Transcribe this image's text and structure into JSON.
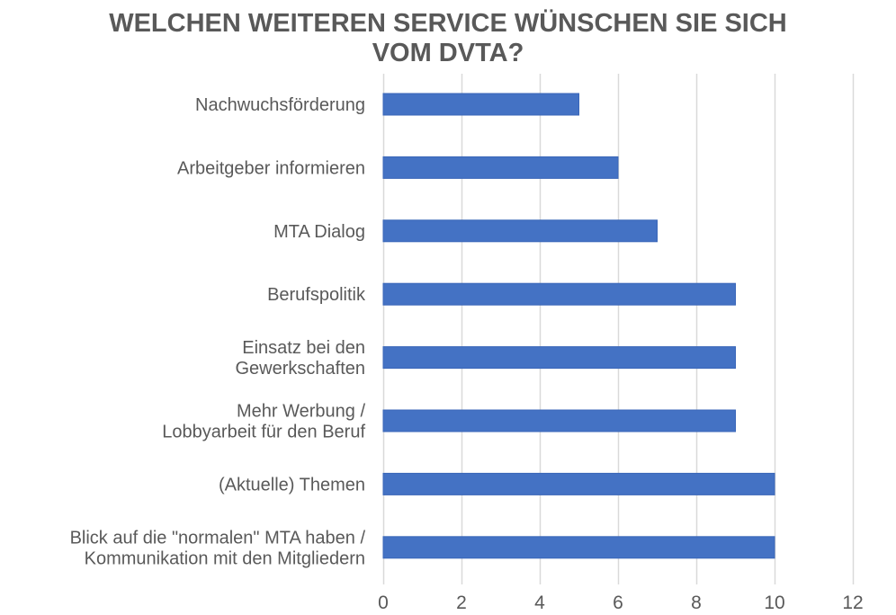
{
  "chart_data": {
    "type": "bar",
    "orientation": "horizontal",
    "title": "WELCHEN WEITEREN SERVICE WÜNSCHEN SIE SICH VOM DVTA?",
    "title_lines": [
      "WELCHEN WEITEREN SERVICE WÜNSCHEN SIE SICH",
      "VOM DVTA?"
    ],
    "categories": [
      [
        "Nachwuchsförderung"
      ],
      [
        "Arbeitgeber informieren"
      ],
      [
        "MTA Dialog"
      ],
      [
        "Berufspolitik"
      ],
      [
        "Einsatz bei den",
        "Gewerkschaften"
      ],
      [
        "Mehr Werbung /",
        "Lobbyarbeit für den Beruf"
      ],
      [
        "(Aktuelle) Themen"
      ],
      [
        "Blick auf die \"normalen\" MTA haben /",
        "Kommunikation mit den Mitgliedern"
      ]
    ],
    "values": [
      5,
      6,
      7,
      9,
      9,
      9,
      10,
      10
    ],
    "xlabel": "",
    "ylabel": "",
    "xlim": [
      0,
      12
    ],
    "xticks": [
      0,
      2,
      4,
      6,
      8,
      10,
      12
    ],
    "grid": true,
    "legend": "none",
    "bar_color": "#4472C4",
    "grid_color": "#D9D9D9",
    "text_color": "#595959"
  }
}
